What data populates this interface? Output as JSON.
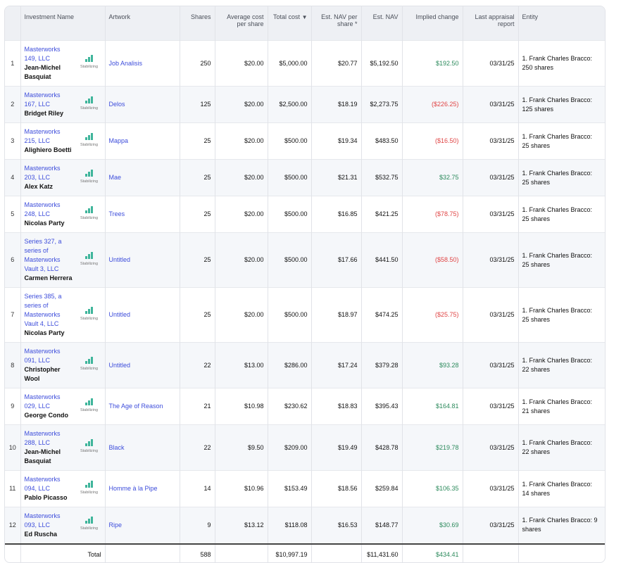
{
  "columns": {
    "index": "",
    "investment_name": "Investment Name",
    "artwork": "Artwork",
    "shares": "Shares",
    "avg_cost": "Average cost per share",
    "total_cost": "Total cost",
    "total_cost_sort": "▼",
    "est_nav_per_share": "Est. NAV per share *",
    "est_nav": "Est. NAV",
    "implied_change": "Implied change",
    "last_report": "Last appraisal report",
    "entity": "Entity"
  },
  "badge_label": "Stabilizing",
  "rows": [
    {
      "idx": "1",
      "inv": "Masterworks 149, LLC",
      "artist": "Jean-Michel Basquiat",
      "artwork": "Job Analisis",
      "shares": "250",
      "avg": "$20.00",
      "total": "$5,000.00",
      "navps": "$20.77",
      "nav": "$5,192.50",
      "change": "$192.50",
      "change_sign": "pos",
      "report": "03/31/25",
      "entity": "1. Frank Charles Bracco: 250 shares"
    },
    {
      "idx": "2",
      "inv": "Masterworks 167, LLC",
      "artist": "Bridget Riley",
      "artwork": "Delos",
      "shares": "125",
      "avg": "$20.00",
      "total": "$2,500.00",
      "navps": "$18.19",
      "nav": "$2,273.75",
      "change": "($226.25)",
      "change_sign": "neg",
      "report": "03/31/25",
      "entity": "1. Frank Charles Bracco: 125 shares"
    },
    {
      "idx": "3",
      "inv": "Masterworks 215, LLC",
      "artist": "Alighiero Boetti",
      "artwork": "Mappa",
      "shares": "25",
      "avg": "$20.00",
      "total": "$500.00",
      "navps": "$19.34",
      "nav": "$483.50",
      "change": "($16.50)",
      "change_sign": "neg",
      "report": "03/31/25",
      "entity": "1. Frank Charles Bracco: 25 shares"
    },
    {
      "idx": "4",
      "inv": "Masterworks 203, LLC",
      "artist": "Alex Katz",
      "artwork": "Mae",
      "shares": "25",
      "avg": "$20.00",
      "total": "$500.00",
      "navps": "$21.31",
      "nav": "$532.75",
      "change": "$32.75",
      "change_sign": "pos",
      "report": "03/31/25",
      "entity": "1. Frank Charles Bracco: 25 shares"
    },
    {
      "idx": "5",
      "inv": "Masterworks 248, LLC",
      "artist": "Nicolas Party",
      "artwork": "Trees",
      "shares": "25",
      "avg": "$20.00",
      "total": "$500.00",
      "navps": "$16.85",
      "nav": "$421.25",
      "change": "($78.75)",
      "change_sign": "neg",
      "report": "03/31/25",
      "entity": "1. Frank Charles Bracco: 25 shares"
    },
    {
      "idx": "6",
      "inv": "Series 327, a series of Masterworks Vault 3, LLC",
      "artist": "Carmen Herrera",
      "artwork": "Untitled",
      "shares": "25",
      "avg": "$20.00",
      "total": "$500.00",
      "navps": "$17.66",
      "nav": "$441.50",
      "change": "($58.50)",
      "change_sign": "neg",
      "report": "03/31/25",
      "entity": "1. Frank Charles Bracco: 25 shares"
    },
    {
      "idx": "7",
      "inv": "Series 385, a series of Masterworks Vault 4, LLC",
      "artist": "Nicolas Party",
      "artwork": "Untitled",
      "shares": "25",
      "avg": "$20.00",
      "total": "$500.00",
      "navps": "$18.97",
      "nav": "$474.25",
      "change": "($25.75)",
      "change_sign": "neg",
      "report": "03/31/25",
      "entity": "1. Frank Charles Bracco: 25 shares"
    },
    {
      "idx": "8",
      "inv": "Masterworks 091, LLC",
      "artist": "Christopher Wool",
      "artwork": "Untitled",
      "shares": "22",
      "avg": "$13.00",
      "total": "$286.00",
      "navps": "$17.24",
      "nav": "$379.28",
      "change": "$93.28",
      "change_sign": "pos",
      "report": "03/31/25",
      "entity": "1. Frank Charles Bracco: 22 shares"
    },
    {
      "idx": "9",
      "inv": "Masterworks 029, LLC",
      "artist": "George Condo",
      "artwork": "The Age of Reason",
      "shares": "21",
      "avg": "$10.98",
      "total": "$230.62",
      "navps": "$18.83",
      "nav": "$395.43",
      "change": "$164.81",
      "change_sign": "pos",
      "report": "03/31/25",
      "entity": "1. Frank Charles Bracco: 21 shares"
    },
    {
      "idx": "10",
      "inv": "Masterworks 288, LLC",
      "artist": "Jean-Michel Basquiat",
      "artwork": "Black",
      "shares": "22",
      "avg": "$9.50",
      "total": "$209.00",
      "navps": "$19.49",
      "nav": "$428.78",
      "change": "$219.78",
      "change_sign": "pos",
      "report": "03/31/25",
      "entity": "1. Frank Charles Bracco: 22 shares"
    },
    {
      "idx": "11",
      "inv": "Masterworks 094, LLC",
      "artist": "Pablo Picasso",
      "artwork": "Homme à la Pipe",
      "shares": "14",
      "avg": "$10.96",
      "total": "$153.49",
      "navps": "$18.56",
      "nav": "$259.84",
      "change": "$106.35",
      "change_sign": "pos",
      "report": "03/31/25",
      "entity": "1. Frank Charles Bracco: 14 shares"
    },
    {
      "idx": "12",
      "inv": "Masterworks 093, LLC",
      "artist": "Ed Ruscha",
      "artwork": "Ripe",
      "shares": "9",
      "avg": "$13.12",
      "total": "$118.08",
      "navps": "$16.53",
      "nav": "$148.77",
      "change": "$30.69",
      "change_sign": "pos",
      "report": "03/31/25",
      "entity": "1. Frank Charles Bracco: 9 shares"
    }
  ],
  "totals": {
    "label": "Total",
    "shares": "588",
    "total_cost": "$10,997.19",
    "est_nav": "$11,431.60",
    "implied_change": "$434.41"
  }
}
